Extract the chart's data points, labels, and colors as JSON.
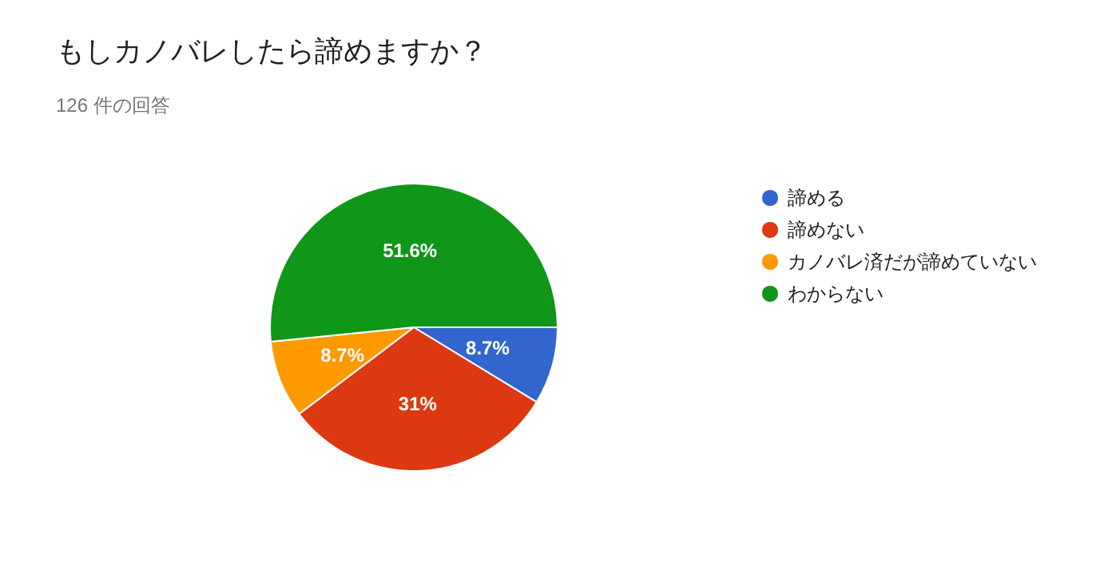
{
  "chart_data": {
    "type": "pie",
    "title": "もしカノバレしたら諦めますか？",
    "subtitle": "126 件の回答",
    "categories": [
      "諦める",
      "諦めない",
      "カノバレ済だが諦めていない",
      "わからない"
    ],
    "values": [
      8.7,
      31,
      8.7,
      51.6
    ],
    "value_labels": [
      "8.7%",
      "31%",
      "8.7%",
      "51.6%"
    ],
    "colors": [
      "#3366cc",
      "#dc3912",
      "#ff9900",
      "#109618"
    ],
    "legend": "top right"
  }
}
